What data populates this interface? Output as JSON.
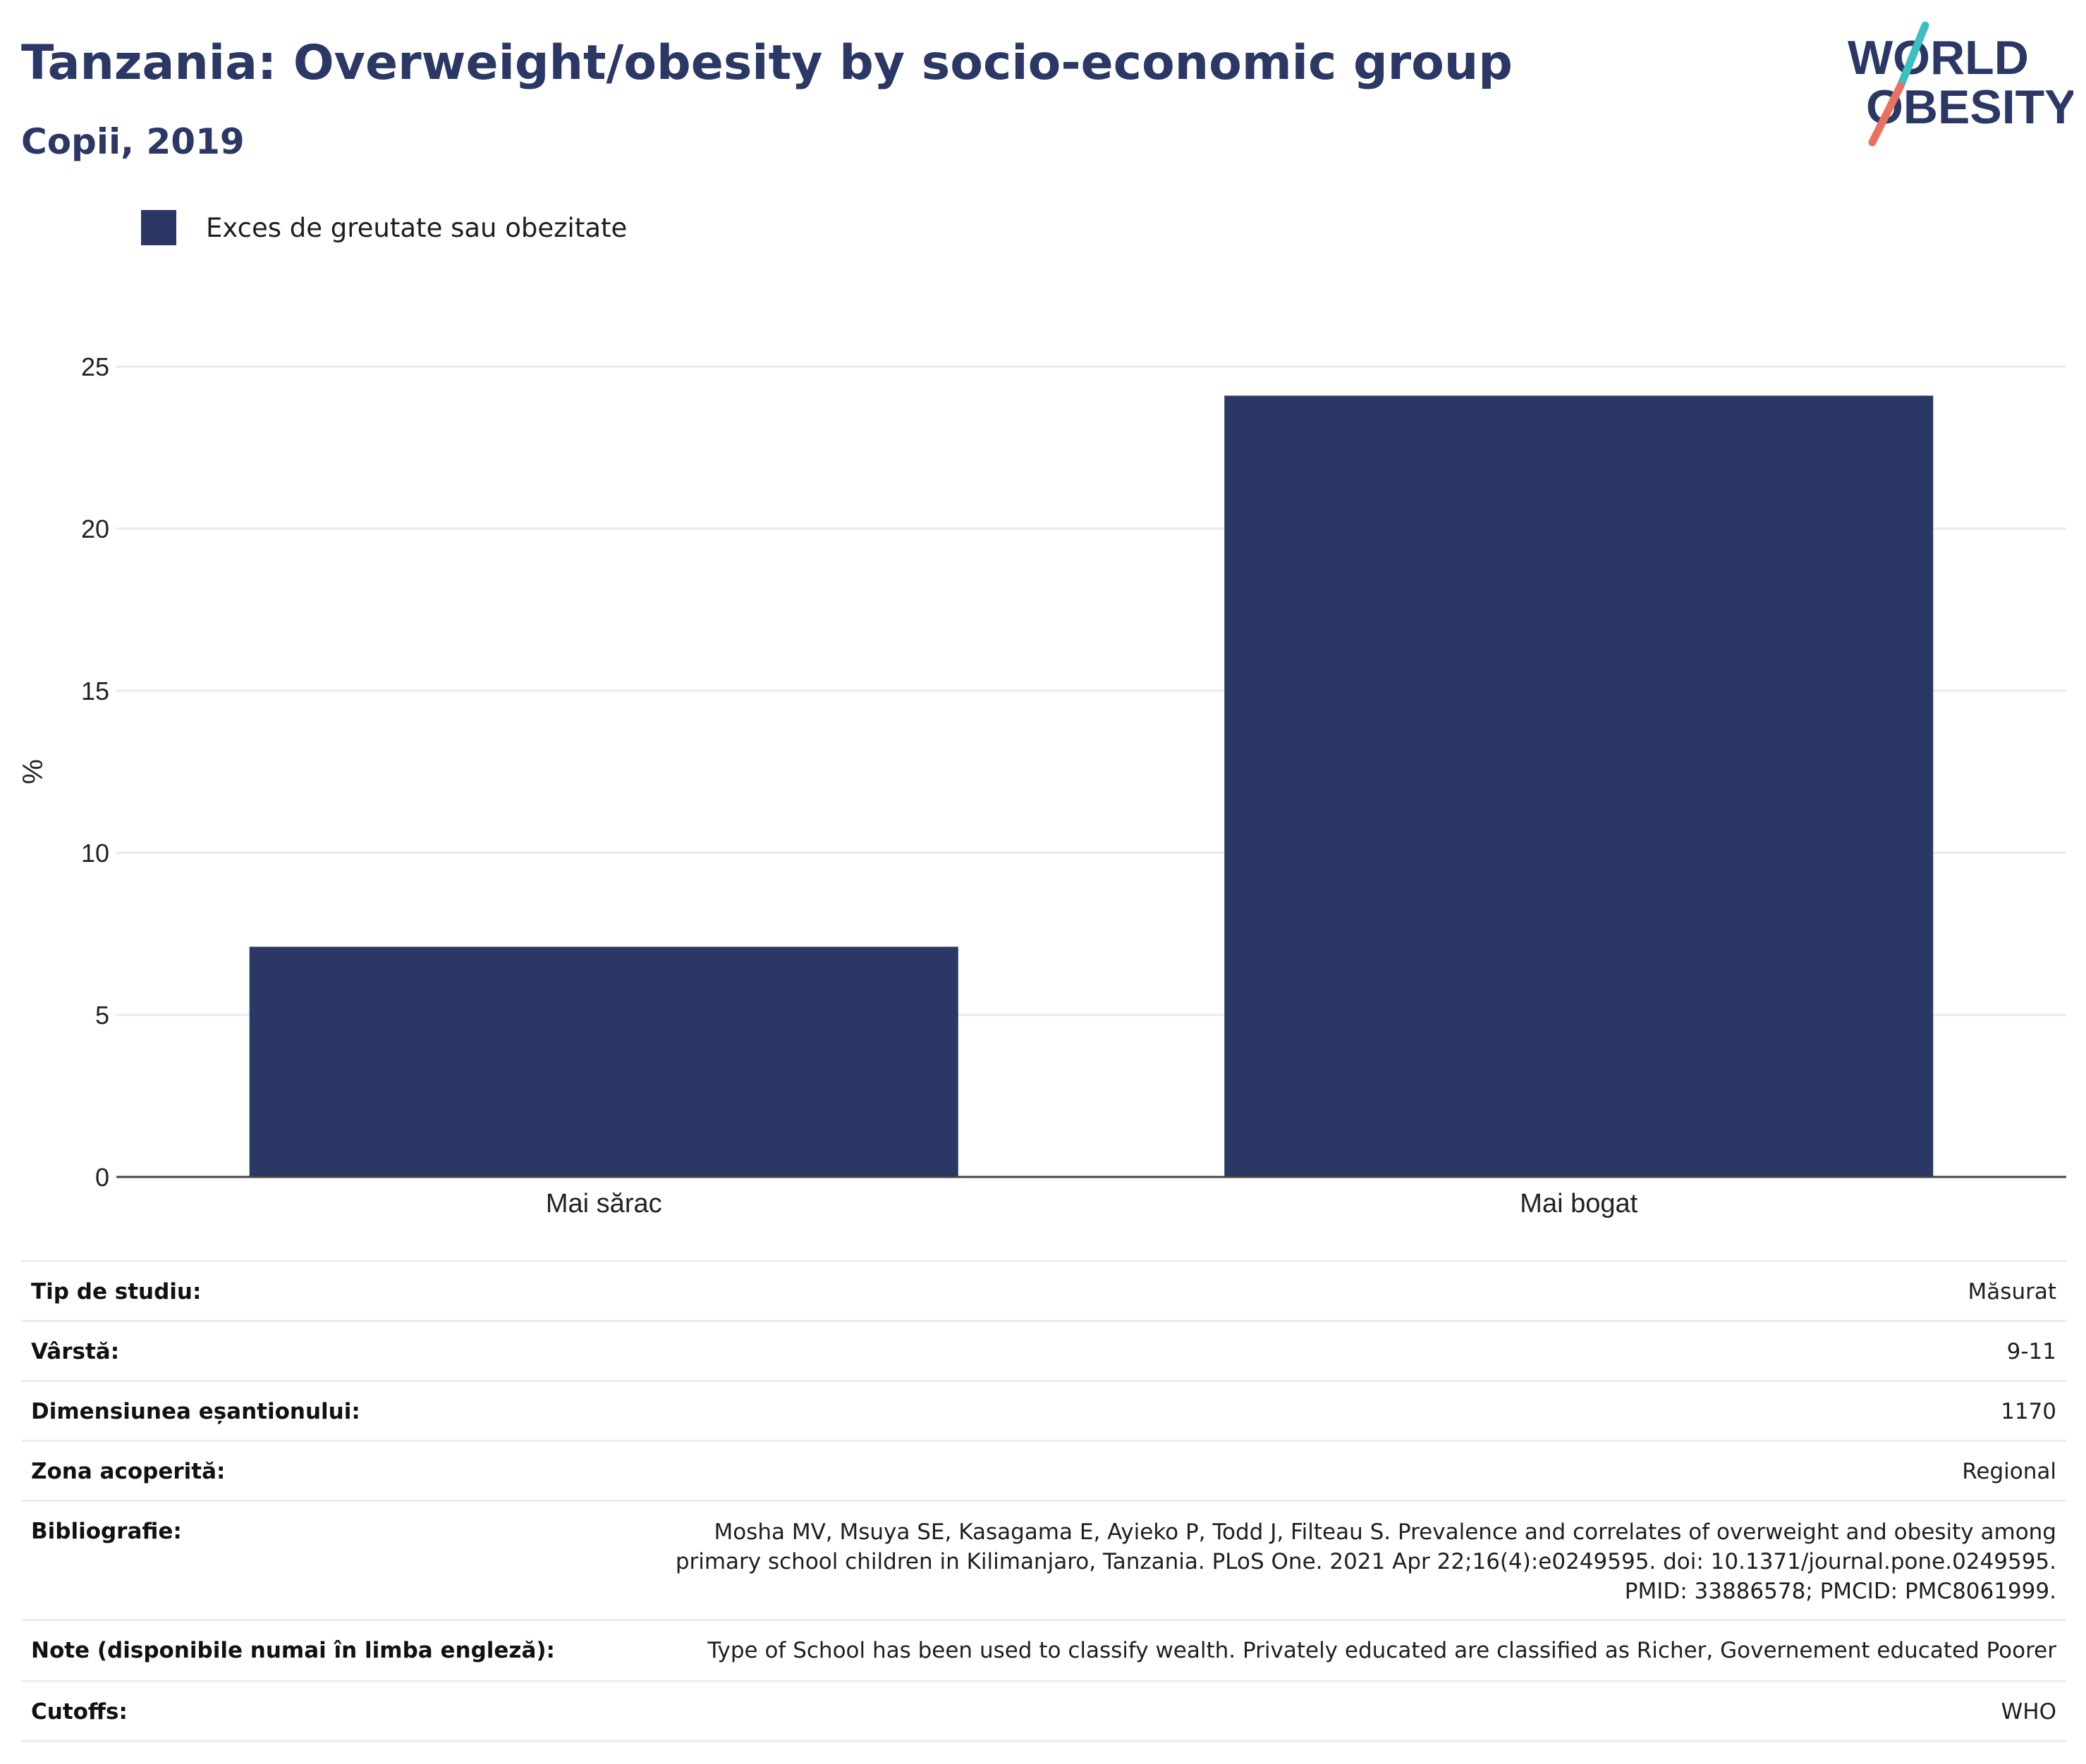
{
  "header": {
    "title": "Tanzania: Overweight/obesity by socio-economic group",
    "subtitle": "Copii, 2019"
  },
  "logo": {
    "line1": "WORLD",
    "line2": "OBESITY",
    "colors": {
      "text": "#2b3765",
      "slash_top": "#3bbfc0",
      "slash_bottom": "#e8715f"
    }
  },
  "legend": {
    "label": "Exces de greutate sau obezitate",
    "color": "#2b3765"
  },
  "chart_data": {
    "type": "bar",
    "categories": [
      "Mai sărac",
      "Mai bogat"
    ],
    "series": [
      {
        "name": "Exces de greutate sau obezitate",
        "values": [
          7.1,
          24.1
        ]
      }
    ],
    "ylabel": "%",
    "xlabel": "",
    "ylim": [
      0,
      25
    ],
    "yticks": [
      0,
      5,
      10,
      15,
      20,
      25
    ],
    "grid": true,
    "legend_position": "top-left",
    "bar_color": "#2b3765"
  },
  "info": {
    "rows": [
      {
        "label": "Tip de studiu:",
        "value": "Măsurat"
      },
      {
        "label": "Vârstă:",
        "value": "9-11"
      },
      {
        "label": "Dimensiunea eșantionului:",
        "value": "1170"
      },
      {
        "label": "Zona acoperită:",
        "value": "Regional"
      },
      {
        "label": "Bibliografie:",
        "value": "Mosha MV, Msuya SE, Kasagama E, Ayieko P, Todd J, Filteau S. Prevalence and correlates of overweight and obesity among primary school children in Kilimanjaro, Tanzania. PLoS One. 2021 Apr 22;16(4):e0249595. doi: 10.1371/journal.pone.0249595. PMID: 33886578; PMCID: PMC8061999."
      },
      {
        "label": "Note (disponibile numai în limba engleză):",
        "value": "Type of School has been used to classify wealth. Privately educated are classified as Richer, Governement educated Poorer"
      },
      {
        "label": "Cutoffs:",
        "value": "WHO"
      }
    ]
  }
}
